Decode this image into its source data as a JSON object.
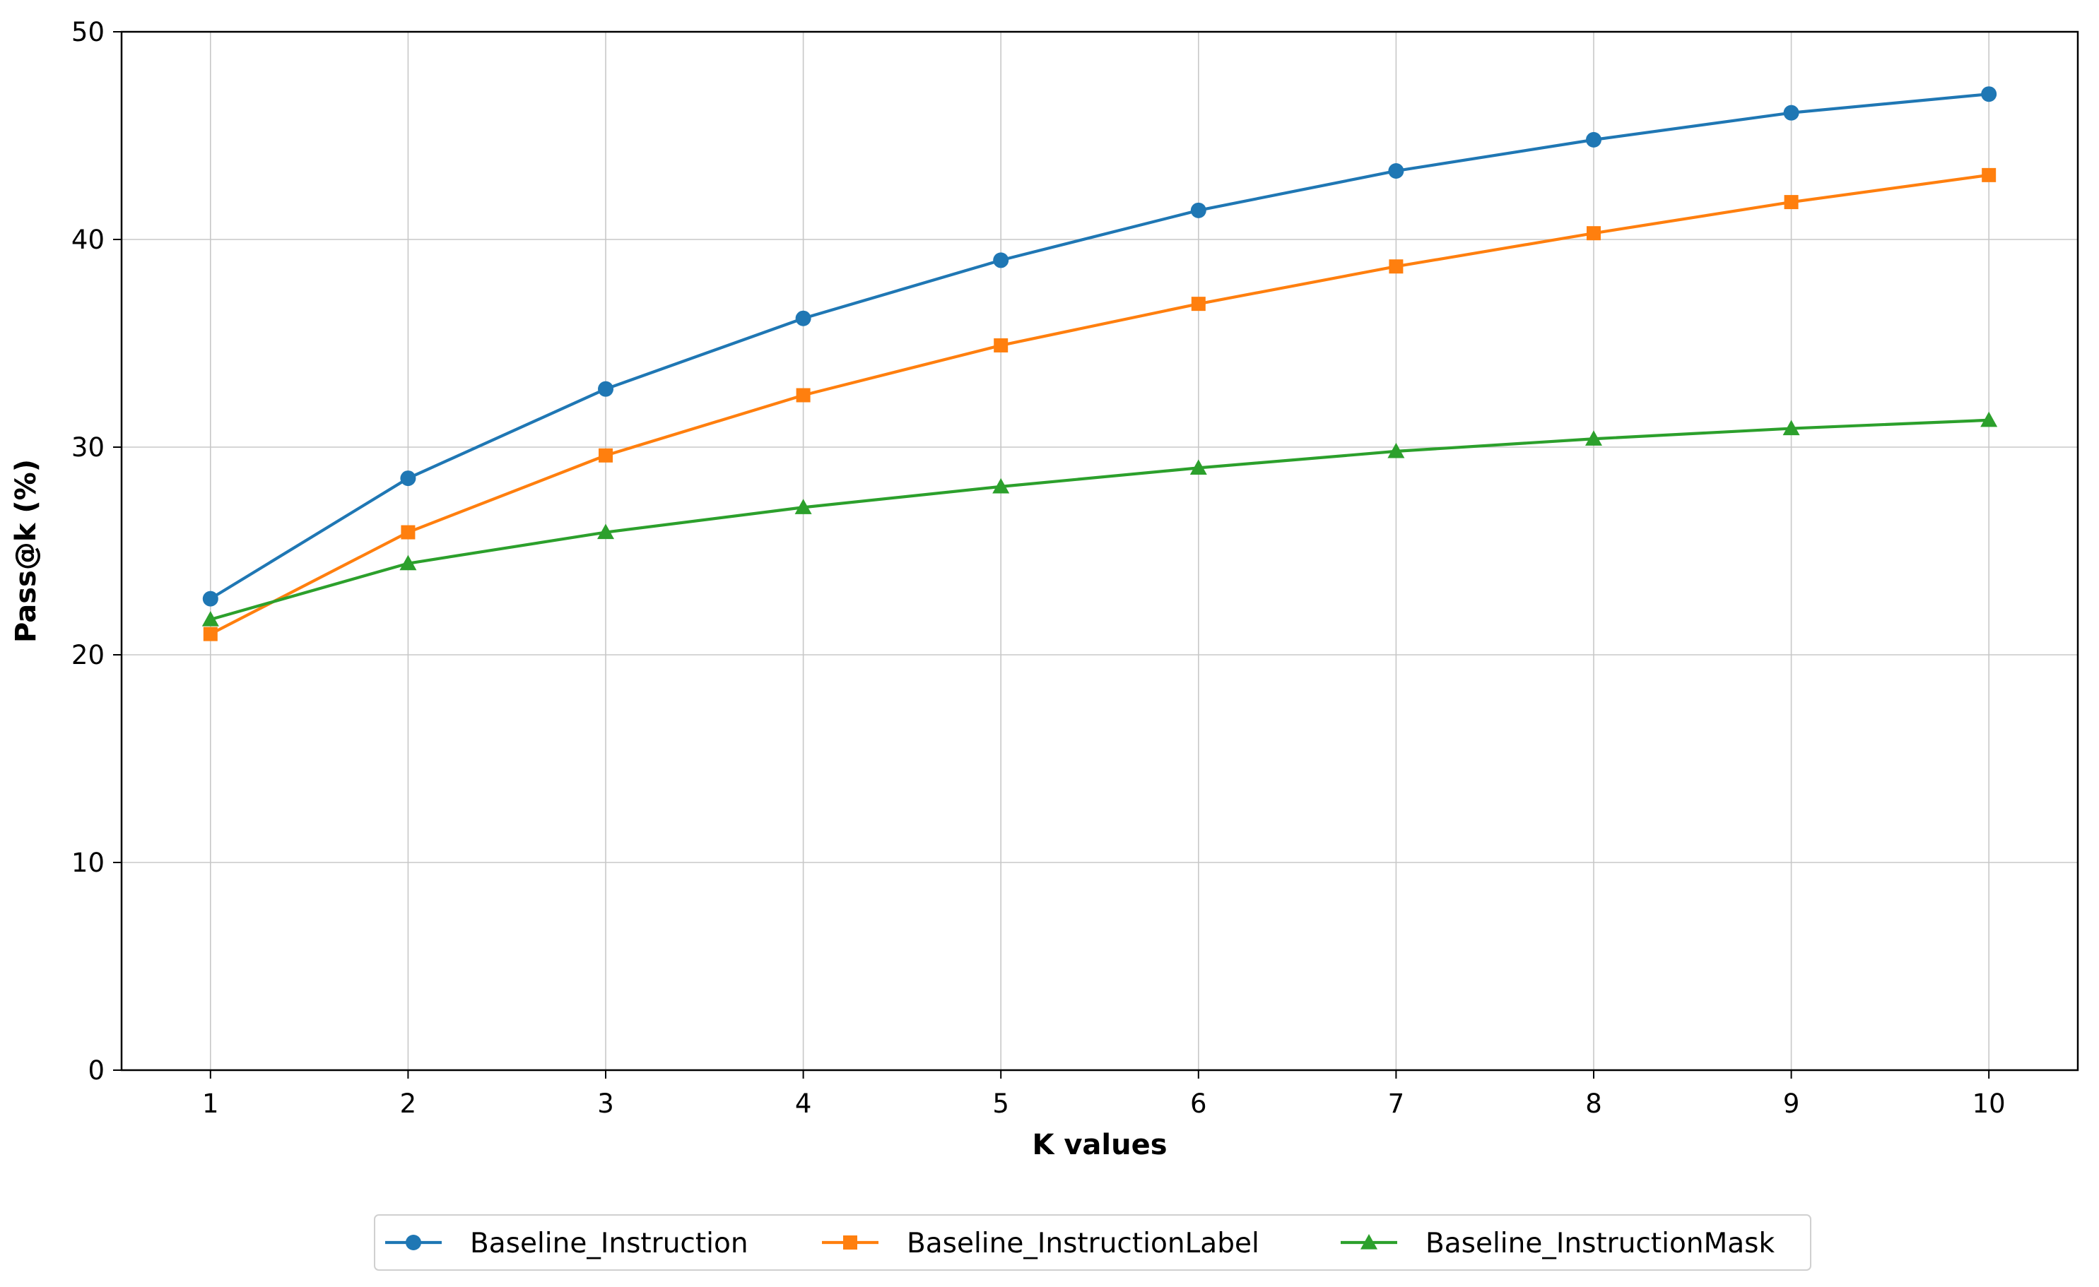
{
  "chart_data": {
    "type": "line",
    "title": "",
    "xlabel": "K values",
    "ylabel": "Pass@k (%)",
    "x": [
      1,
      2,
      3,
      4,
      5,
      6,
      7,
      8,
      9,
      10
    ],
    "x_tick_labels": [
      "1",
      "2",
      "3",
      "4",
      "5",
      "6",
      "7",
      "8",
      "9",
      "10"
    ],
    "xlim": [
      0.55,
      10.45
    ],
    "ylim": [
      0,
      50
    ],
    "y_ticks": [
      0,
      10,
      20,
      30,
      40,
      50
    ],
    "y_tick_labels": [
      "0",
      "10",
      "20",
      "30",
      "40",
      "50"
    ],
    "grid": true,
    "legend_position": "bottom-center",
    "series": [
      {
        "name": "Baseline_Instruction",
        "color": "#1f77b4",
        "marker": "circle",
        "values": [
          22.7,
          28.5,
          32.8,
          36.2,
          39.0,
          41.4,
          43.3,
          44.8,
          46.1,
          47.0
        ]
      },
      {
        "name": "Baseline_InstructionLabel",
        "color": "#ff7f0e",
        "marker": "square",
        "values": [
          21.0,
          25.9,
          29.6,
          32.5,
          34.9,
          36.9,
          38.7,
          40.3,
          41.8,
          43.1
        ]
      },
      {
        "name": "Baseline_InstructionMask",
        "color": "#2ca02c",
        "marker": "triangle",
        "values": [
          21.7,
          24.4,
          25.9,
          27.1,
          28.1,
          29.0,
          29.8,
          30.4,
          30.9,
          31.3
        ]
      }
    ]
  }
}
